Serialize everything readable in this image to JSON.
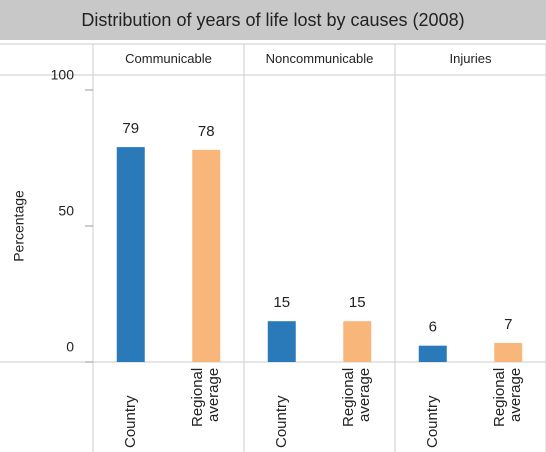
{
  "chart_data": {
    "type": "bar",
    "title": "Distribution of years of life lost by causes (2008)",
    "ylabel": "Percentage",
    "categories": [
      "Country",
      "Regional average"
    ],
    "colors": [
      "#2a7ab9",
      "#f9b67a"
    ],
    "panels": [
      {
        "name": "Communicable",
        "values": [
          79,
          78
        ]
      },
      {
        "name": "Noncommunicable",
        "values": [
          15,
          15
        ]
      },
      {
        "name": "Injuries",
        "values": [
          6,
          7
        ]
      }
    ],
    "ylim": [
      0,
      100
    ],
    "yticks": [
      0,
      50,
      100
    ]
  }
}
